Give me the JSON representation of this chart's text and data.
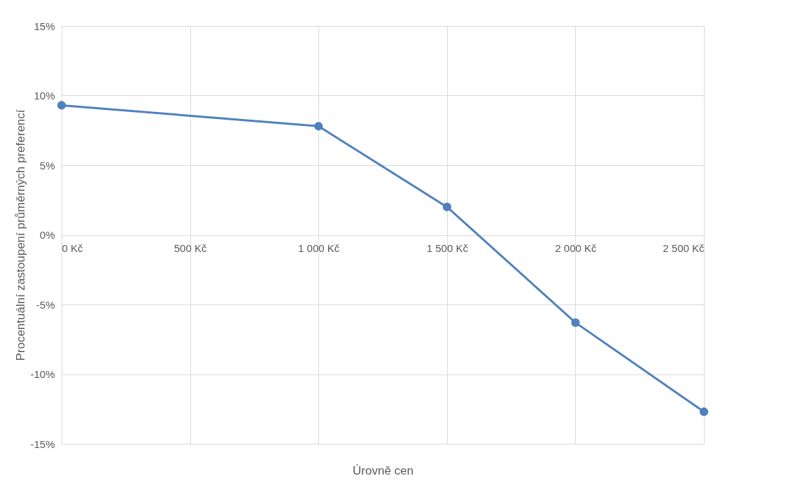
{
  "chart_data": {
    "type": "line",
    "xlabel": "Úrovně cen",
    "ylabel": "Procentuální zastoupení průměrných preferencí",
    "x": [
      0,
      1000,
      1500,
      2000,
      2500
    ],
    "series": [
      {
        "color": "#4f81bd",
        "values": [
          9.3,
          7.8,
          2.0,
          -6.3,
          -12.7
        ]
      }
    ],
    "xlim": [
      0,
      2500
    ],
    "xticks": [
      {
        "value": 0,
        "label": "0 Kč"
      },
      {
        "value": 500,
        "label": "500 Kč"
      },
      {
        "value": 1000,
        "label": "1 000 Kč"
      },
      {
        "value": 1500,
        "label": "1 500 Kč"
      },
      {
        "value": 2000,
        "label": "2 000 Kč"
      },
      {
        "value": 2500,
        "label": "2 500 Kč"
      }
    ],
    "ylim": [
      -15,
      15
    ],
    "yticks": [
      {
        "value": -15,
        "label": "-15%"
      },
      {
        "value": -10,
        "label": "-10%"
      },
      {
        "value": -5,
        "label": "-5%"
      },
      {
        "value": 0,
        "label": "0%"
      },
      {
        "value": 5,
        "label": "5%"
      },
      {
        "value": 10,
        "label": "10%"
      },
      {
        "value": 15,
        "label": "15%"
      }
    ],
    "grid": true,
    "marker": "circle",
    "line_style": "solid"
  }
}
